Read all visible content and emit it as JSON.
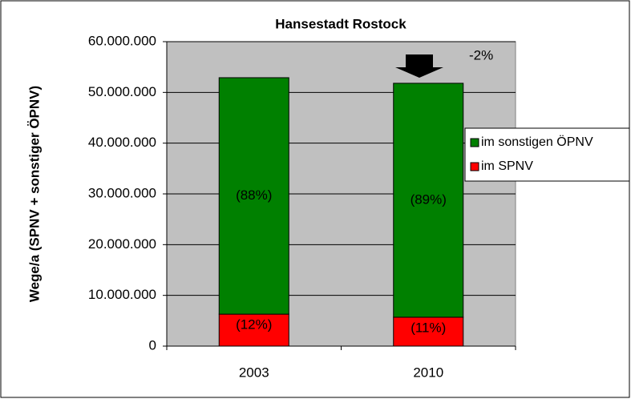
{
  "chart_data": {
    "type": "stacked_bar",
    "title": "Hansestadt Rostock",
    "y_label": "Wege/a (SPNV + sonstiger ÖPNV)",
    "categories": [
      "2003",
      "2010"
    ],
    "series": [
      {
        "name": "im SPNV",
        "color": "#ff0000",
        "values": [
          6300000,
          5700000
        ],
        "share_labels": [
          "(12%)",
          "(11%)"
        ]
      },
      {
        "name": "im sonstigen ÖPNV",
        "color": "#008000",
        "values": [
          46600000,
          46100000
        ],
        "share_labels": [
          "(88%)",
          "(89%)"
        ]
      }
    ],
    "annotation": "-2%",
    "ylim": [
      0,
      60000000
    ],
    "yticks": [
      0,
      {
        "value": 10000000,
        "label": "10.000.000"
      },
      {
        "value": 20000000,
        "label": "20.000.000"
      },
      {
        "value": 30000000,
        "label": "30.000.000"
      },
      {
        "value": 40000000,
        "label": "40.000.000"
      },
      {
        "value": 50000000,
        "label": "50.000.000"
      },
      {
        "value": 60000000,
        "label": "60.000.000"
      }
    ],
    "grid": true,
    "plot_background": "#c0c0c0",
    "legend": "right"
  }
}
